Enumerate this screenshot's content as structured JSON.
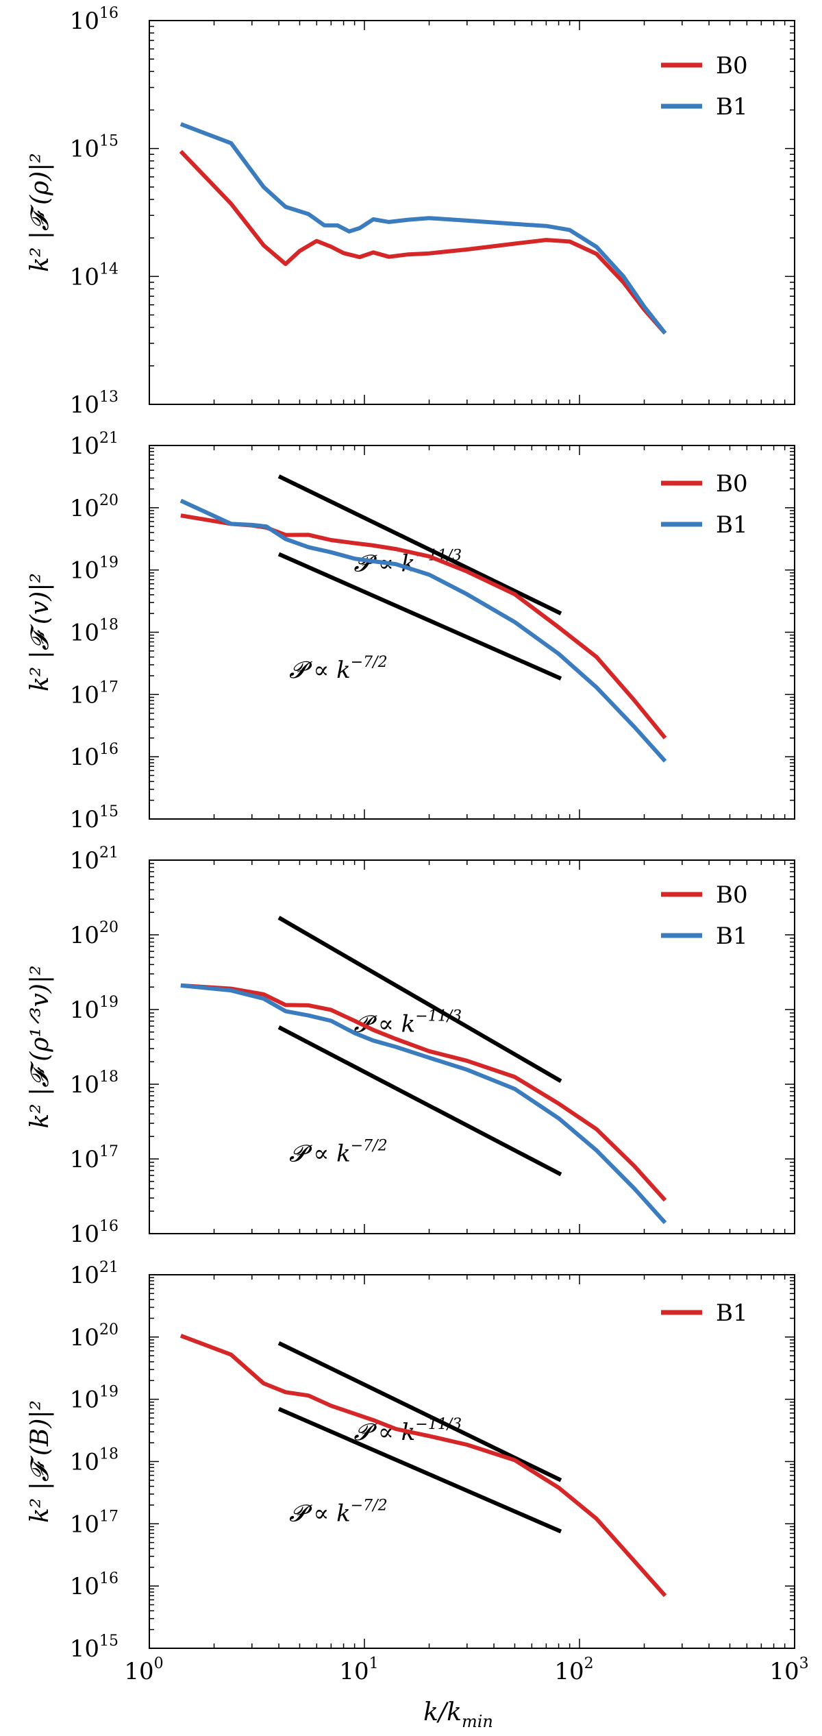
{
  "chart_data": [
    {
      "type": "line",
      "xscale": "log",
      "yscale": "log",
      "xlim": [
        1,
        1000
      ],
      "ylim": [
        10000000000000.0,
        1e+16
      ],
      "ylabel": "k² |𝓕 (ρ)|²",
      "y_ticks": [
        {
          "base": "10",
          "exp": "13"
        },
        {
          "base": "10",
          "exp": "14"
        },
        {
          "base": "10",
          "exp": "15"
        },
        {
          "base": "10",
          "exp": "16"
        }
      ],
      "legend_position": "top-right",
      "series": [
        {
          "name": "B0",
          "color": "#d62728",
          "x": [
            1.4,
            2.4,
            3.4,
            4.3,
            5.0,
            6.0,
            7.0,
            8.0,
            9.5,
            11,
            13,
            16,
            20,
            30,
            50,
            70,
            90,
            120,
            160,
            200,
            250
          ],
          "y": [
            950000000000000.0,
            370000000000000.0,
            175000000000000.0,
            125000000000000.0,
            155000000000000.0,
            185000000000000.0,
            170000000000000.0,
            155000000000000.0,
            145000000000000.0,
            155000000000000.0,
            140000000000000.0,
            145000000000000.0,
            150000000000000.0,
            165000000000000.0,
            185000000000000.0,
            195000000000000.0,
            185000000000000.0,
            150000000000000.0,
            90000000000000.0,
            55000000000000.0,
            36000000000000.0
          ]
        },
        {
          "name": "B1",
          "color": "#3a7cbd",
          "x": [
            1.4,
            2.4,
            3.4,
            4.3,
            5.5,
            6.5,
            7.5,
            8.5,
            9.5,
            11,
            13,
            16,
            20,
            30,
            50,
            70,
            90,
            120,
            160,
            200,
            250
          ],
          "y": [
            1550000000000000.0,
            1100000000000000.0,
            500000000000000.0,
            350000000000000.0,
            300000000000000.0,
            250000000000000.0,
            255000000000000.0,
            230000000000000.0,
            240000000000000.0,
            275000000000000.0,
            260000000000000.0,
            275000000000000.0,
            290000000000000.0,
            280000000000000.0,
            260000000000000.0,
            245000000000000.0,
            225000000000000.0,
            170000000000000.0,
            100000000000000.0,
            58000000000000.0,
            36000000000000.0
          ]
        }
      ],
      "reference_lines": []
    },
    {
      "type": "line",
      "xscale": "log",
      "yscale": "log",
      "xlim": [
        1,
        1000
      ],
      "ylim": [
        1000000000000000.0,
        1e+21
      ],
      "ylabel": "k² |𝓕 (v)|²",
      "y_ticks": [
        {
          "base": "10",
          "exp": "15"
        },
        {
          "base": "10",
          "exp": "16"
        },
        {
          "base": "10",
          "exp": "17"
        },
        {
          "base": "10",
          "exp": "18"
        },
        {
          "base": "10",
          "exp": "19"
        },
        {
          "base": "10",
          "exp": "20"
        },
        {
          "base": "10",
          "exp": "21"
        }
      ],
      "legend_position": "top-right",
      "series": [
        {
          "name": "B0",
          "color": "#d62728",
          "x": [
            1.4,
            2.4,
            3.0,
            3.5,
            4.3,
            5.5,
            7,
            9,
            11,
            14,
            20,
            30,
            50,
            80,
            120,
            180,
            250
          ],
          "y": [
            7.5e+19,
            5.5e+19,
            5.2e+19,
            4.8e+19,
            3.5e+19,
            3.5e+19,
            3e+19,
            2.8e+19,
            2.6e+19,
            2.2e+19,
            1.6e+19,
            9e+18,
            4e+18,
            1.2e+18,
            4e+17,
            8e+16,
            2e+16
          ]
        },
        {
          "name": "B1",
          "color": "#3a7cbd",
          "x": [
            1.4,
            2.4,
            3.0,
            3.5,
            4.3,
            5.5,
            7,
            9,
            11,
            14,
            20,
            30,
            50,
            80,
            120,
            180,
            250
          ],
          "y": [
            1.3e+20,
            5.5e+19,
            5.3e+19,
            5e+19,
            3e+19,
            2.3e+19,
            2e+19,
            1.6e+19,
            1.4e+19,
            1.2e+19,
            8e+18,
            4e+18,
            1.5e+18,
            4.5e+17,
            1.3e+17,
            3e+16,
            8500000000000000.0
          ]
        }
      ],
      "reference_lines": [
        {
          "x": [
            4,
            82
          ],
          "y": [
            3.2e+20,
            2e+18
          ],
          "label_base": "𝓟 ∝ k",
          "label_exp": "−11/3",
          "label_at": [
            20,
            1.3e+19
          ]
        },
        {
          "x": [
            4,
            82
          ],
          "y": [
            1.8e+19,
            1.8e+17
          ],
          "label_base": "𝓟 ∝ k",
          "label_exp": "−7/2",
          "label_at": [
            10,
            2.5e+17
          ]
        }
      ]
    },
    {
      "type": "line",
      "xscale": "log",
      "yscale": "log",
      "xlim": [
        1,
        1000
      ],
      "ylim": [
        1e+16,
        1e+21
      ],
      "ylabel": "k² |𝓕 (ρ¹ᐟ³v)|²",
      "y_ticks": [
        {
          "base": "10",
          "exp": "16"
        },
        {
          "base": "10",
          "exp": "17"
        },
        {
          "base": "10",
          "exp": "18"
        },
        {
          "base": "10",
          "exp": "19"
        },
        {
          "base": "10",
          "exp": "20"
        },
        {
          "base": "10",
          "exp": "21"
        }
      ],
      "legend_position": "top-right",
      "series": [
        {
          "name": "B0",
          "color": "#d62728",
          "x": [
            1.4,
            2.4,
            3.4,
            4.3,
            5.5,
            7,
            9,
            11,
            14,
            20,
            30,
            50,
            80,
            120,
            180,
            250
          ],
          "y": [
            2.1e+19,
            1.9e+19,
            1.6e+19,
            1.15e+19,
            1.1e+19,
            9.5e+18,
            7e+18,
            5.5e+18,
            4.2e+18,
            2.8e+18,
            2e+18,
            1.2e+18,
            5.5e+17,
            2.5e+17,
            8e+16,
            2.8e+16
          ]
        },
        {
          "name": "B1",
          "color": "#3a7cbd",
          "x": [
            1.4,
            2.4,
            3.4,
            4.3,
            5.5,
            7,
            9,
            11,
            14,
            20,
            30,
            50,
            80,
            120,
            180,
            250
          ],
          "y": [
            2.1e+19,
            1.8e+19,
            1.4e+19,
            9.5e+18,
            8e+18,
            7e+18,
            5e+18,
            4e+18,
            3.2e+18,
            2.2e+18,
            1.5e+18,
            8.5e+17,
            3.5e+17,
            1.3e+17,
            4e+16,
            1.4e+16
          ]
        }
      ],
      "reference_lines": [
        {
          "x": [
            4,
            82
          ],
          "y": [
            1.7e+20,
            1.1e+18
          ],
          "label_base": "𝓟 ∝ k",
          "label_exp": "−11/3",
          "label_at": [
            20,
            6.5e+18
          ]
        },
        {
          "x": [
            4,
            82
          ],
          "y": [
            5.8e+18,
            6.2e+16
          ],
          "label_base": "𝓟 ∝ k",
          "label_exp": "−7/2",
          "label_at": [
            10,
            1.2e+17
          ]
        }
      ]
    },
    {
      "type": "line",
      "xscale": "log",
      "yscale": "log",
      "xlim": [
        1,
        1000
      ],
      "ylim": [
        1000000000000000.0,
        1e+21
      ],
      "ylabel": "k² |𝓕 (B)|²",
      "xlabel": "k/k",
      "xlabel_sub": "min",
      "x_ticks": [
        {
          "base": "10",
          "exp": "0"
        },
        {
          "base": "10",
          "exp": "1"
        },
        {
          "base": "10",
          "exp": "2"
        },
        {
          "base": "10",
          "exp": "3"
        }
      ],
      "y_ticks": [
        {
          "base": "10",
          "exp": "15"
        },
        {
          "base": "10",
          "exp": "16"
        },
        {
          "base": "10",
          "exp": "17"
        },
        {
          "base": "10",
          "exp": "18"
        },
        {
          "base": "10",
          "exp": "19"
        },
        {
          "base": "10",
          "exp": "20"
        },
        {
          "base": "10",
          "exp": "21"
        }
      ],
      "legend_position": "top-right",
      "series": [
        {
          "name": "B1",
          "color": "#d62728",
          "x": [
            1.4,
            2.4,
            3.4,
            4.3,
            5.5,
            7,
            9,
            11,
            14,
            20,
            30,
            50,
            80,
            120,
            180,
            250
          ],
          "y": [
            1.05e+20,
            5.2e+19,
            1.8e+19,
            1.3e+19,
            1.1e+19,
            7.5e+18,
            5.8e+18,
            4.8e+18,
            3.5e+18,
            2.6e+18,
            1.8e+18,
            1e+18,
            3.8e+17,
            1.2e+17,
            2.5e+16,
            7000000000000000.0
          ]
        }
      ],
      "reference_lines": [
        {
          "x": [
            4,
            82
          ],
          "y": [
            8e+19,
            5e+17
          ],
          "label_base": "𝓟 ∝ k",
          "label_exp": "−11/3",
          "label_at": [
            20,
            3e+18
          ]
        },
        {
          "x": [
            4,
            82
          ],
          "y": [
            7e+18,
            7.5e+16
          ],
          "label_base": "𝓟 ∝ k",
          "label_exp": "−7/2",
          "label_at": [
            10,
            1.5e+17
          ]
        }
      ]
    }
  ]
}
